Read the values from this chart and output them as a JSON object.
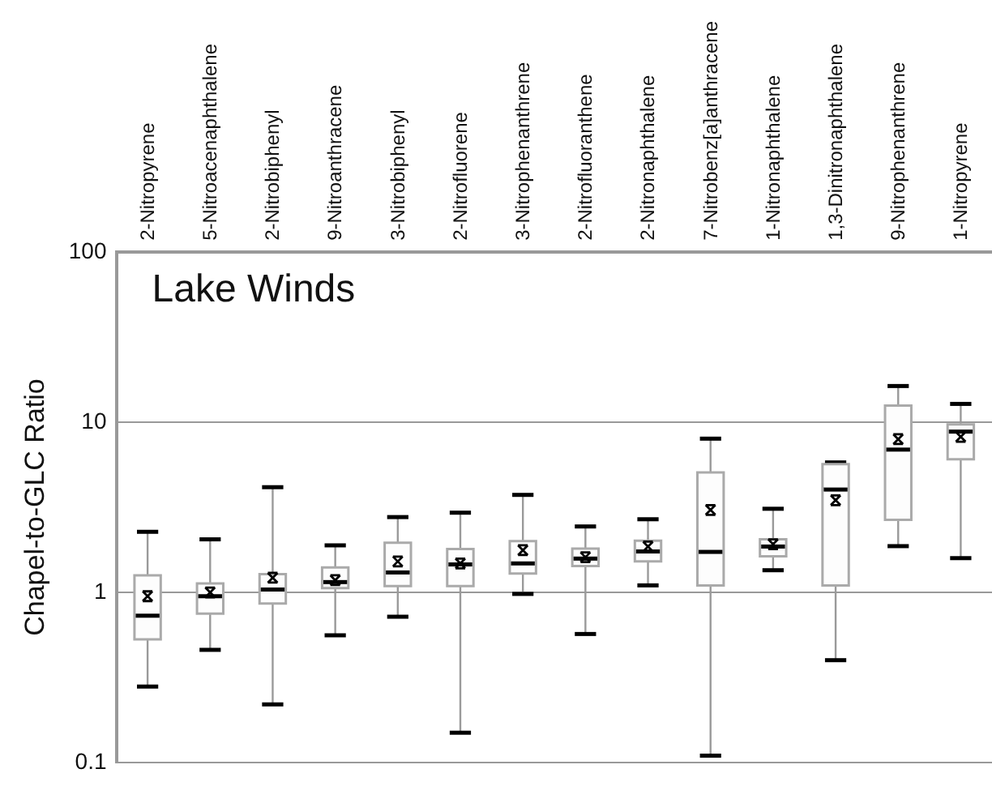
{
  "chart_data": {
    "type": "box",
    "title": "Lake Winds",
    "ylabel": "Chapel-to-GLC Ratio",
    "categories": [
      "2-Nitropyrene",
      "5-Nitroacenaphthalene",
      "2-Nitrobiphenyl",
      "9-Nitroanthracene",
      "3-Nitrobiphenyl",
      "2-Nitrofluorene",
      "3-Nitrophenanthrene",
      "2-Nitrofluoranthene",
      "2-Nitronaphthalene",
      "7-Nitrobenz[a]anthracene",
      "1-Nitronaphthalene",
      "1,3-Dinitronaphthalene",
      "9-Nitrophenanthrene",
      "1-Nitropyrene"
    ],
    "boxes": [
      {
        "low": 0.28,
        "q1": 0.53,
        "median": 0.73,
        "q3": 1.26,
        "high": 2.27,
        "mean": 0.95
      },
      {
        "low": 0.46,
        "q1": 0.75,
        "median": 0.95,
        "q3": 1.13,
        "high": 2.05,
        "mean": 1.0
      },
      {
        "low": 0.22,
        "q1": 0.86,
        "median": 1.04,
        "q3": 1.28,
        "high": 4.15,
        "mean": 1.22
      },
      {
        "low": 0.56,
        "q1": 1.06,
        "median": 1.15,
        "q3": 1.4,
        "high": 1.89,
        "mean": 1.18
      },
      {
        "low": 0.72,
        "q1": 1.09,
        "median": 1.31,
        "q3": 1.96,
        "high": 2.77,
        "mean": 1.52
      },
      {
        "low": 0.15,
        "q1": 1.09,
        "median": 1.46,
        "q3": 1.8,
        "high": 2.94,
        "mean": 1.48
      },
      {
        "low": 0.98,
        "q1": 1.29,
        "median": 1.48,
        "q3": 2.0,
        "high": 3.74,
        "mean": 1.77
      },
      {
        "low": 0.57,
        "q1": 1.43,
        "median": 1.58,
        "q3": 1.81,
        "high": 2.44,
        "mean": 1.61
      },
      {
        "low": 1.1,
        "q1": 1.52,
        "median": 1.74,
        "q3": 2.01,
        "high": 2.69,
        "mean": 1.86
      },
      {
        "low": 0.11,
        "q1": 1.1,
        "median": 1.73,
        "q3": 5.06,
        "high": 8.0,
        "mean": 3.05
      },
      {
        "low": 1.35,
        "q1": 1.63,
        "median": 1.86,
        "q3": 2.05,
        "high": 3.1,
        "mean": 1.92
      },
      {
        "low": 0.4,
        "q1": 1.1,
        "median": 4.02,
        "q3": 5.67,
        "high": 5.8,
        "mean": 3.48
      },
      {
        "low": 1.87,
        "q1": 2.67,
        "median": 6.9,
        "q3": 12.5,
        "high": 16.3,
        "mean": 7.95
      },
      {
        "low": 1.59,
        "q1": 6.05,
        "median": 8.8,
        "q3": 9.7,
        "high": 12.8,
        "mean": 8.2
      }
    ],
    "log": "y",
    "ylim": [
      0.1,
      100
    ],
    "yticks": [
      0.1,
      1,
      10,
      100
    ],
    "grid": "y",
    "legend": false
  }
}
